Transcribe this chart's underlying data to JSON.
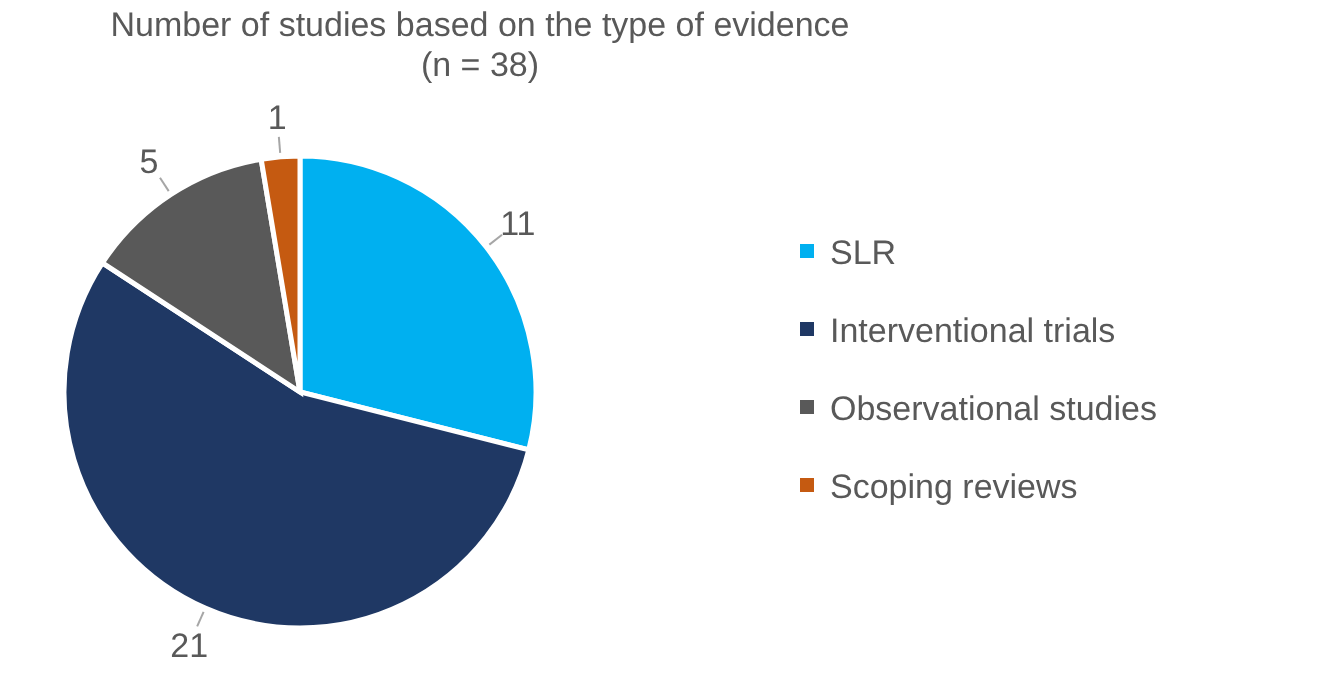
{
  "chart_data": {
    "type": "pie",
    "title": "Number of studies based on the type of evidence",
    "subtitle": "(n = 38)",
    "categories": [
      "SLR",
      "Interventional trials",
      "Observational studies",
      "Scoping reviews"
    ],
    "values": [
      11,
      21,
      5,
      1
    ],
    "colors": [
      "#00b0f0",
      "#1f3864",
      "#595959",
      "#c55a11"
    ],
    "data_labels": true,
    "legend": "right"
  }
}
